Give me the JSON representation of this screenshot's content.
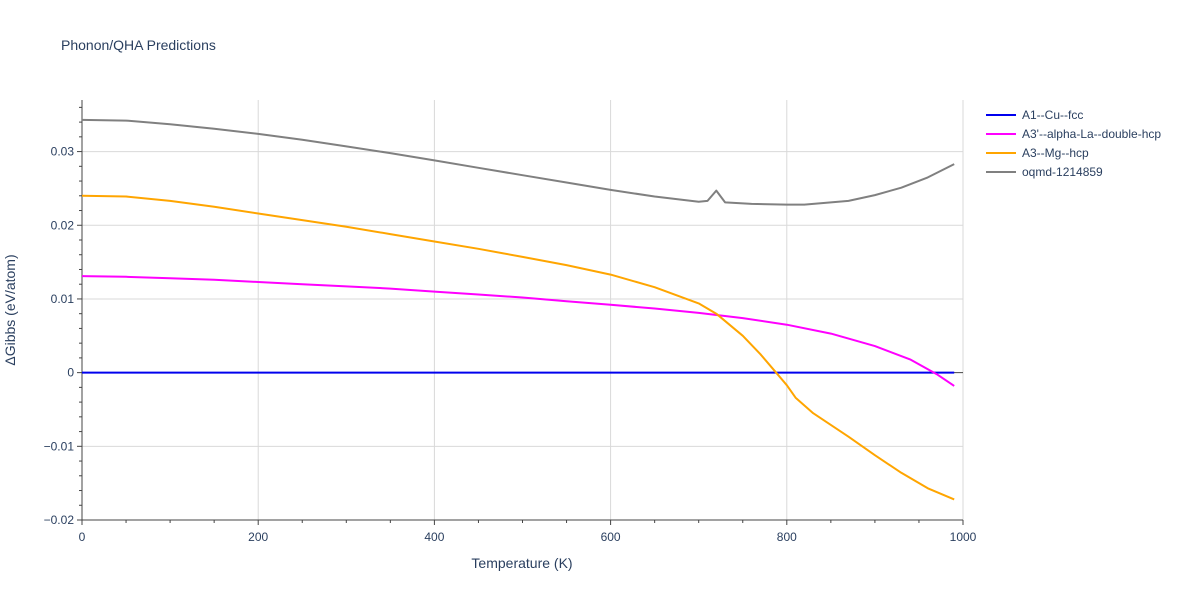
{
  "chart_data": {
    "type": "line",
    "title": "Phonon/QHA Predictions",
    "xlabel": "Temperature (K)",
    "ylabel": "ΔGibbs (eV/atom)",
    "xlim": [
      0,
      1000
    ],
    "ylim": [
      -0.02,
      0.037
    ],
    "xticks": [
      0,
      200,
      400,
      600,
      800,
      1000
    ],
    "xtick_labels": [
      "0",
      "200",
      "400",
      "600",
      "800",
      "1000"
    ],
    "yticks": [
      -0.02,
      -0.01,
      0,
      0.01,
      0.02,
      0.03
    ],
    "ytick_labels": [
      "−0.02",
      "−0.01",
      "0",
      "0.01",
      "0.02",
      "0.03"
    ],
    "grid": true,
    "legend_position": "right",
    "series": [
      {
        "name": "A1--Cu--fcc",
        "color": "#0000ee",
        "x": [
          0,
          990
        ],
        "y": [
          0,
          0
        ]
      },
      {
        "name": "A3'--alpha-La--double-hcp",
        "color": "#ff00ff",
        "x": [
          0,
          50,
          100,
          150,
          200,
          250,
          300,
          350,
          400,
          450,
          500,
          550,
          600,
          650,
          700,
          750,
          800,
          850,
          900,
          940,
          970,
          990
        ],
        "y": [
          0.0131,
          0.013,
          0.0128,
          0.0126,
          0.0123,
          0.012,
          0.0117,
          0.0114,
          0.011,
          0.0106,
          0.0102,
          0.0097,
          0.0092,
          0.0087,
          0.0081,
          0.0074,
          0.0065,
          0.0053,
          0.0036,
          0.0018,
          -0.0002,
          -0.0018
        ]
      },
      {
        "name": "A3--Mg--hcp",
        "color": "#ffa500",
        "x": [
          0,
          50,
          100,
          150,
          200,
          250,
          300,
          350,
          400,
          450,
          500,
          550,
          600,
          650,
          700,
          720,
          750,
          770,
          790,
          800,
          810,
          830,
          870,
          900,
          930,
          960,
          990
        ],
        "y": [
          0.024,
          0.0239,
          0.0233,
          0.0225,
          0.0216,
          0.0207,
          0.0198,
          0.0188,
          0.0178,
          0.0168,
          0.0157,
          0.0146,
          0.0133,
          0.0116,
          0.0094,
          0.008,
          0.005,
          0.0025,
          -0.0003,
          -0.0017,
          -0.0034,
          -0.0055,
          -0.0087,
          -0.0112,
          -0.0136,
          -0.0157,
          -0.0172
        ]
      },
      {
        "name": "oqmd-1214859",
        "color": "#808080",
        "x": [
          0,
          50,
          100,
          150,
          200,
          250,
          300,
          350,
          400,
          450,
          500,
          550,
          600,
          650,
          700,
          710,
          720,
          730,
          760,
          800,
          820,
          850,
          870,
          900,
          930,
          960,
          990
        ],
        "y": [
          0.0343,
          0.0342,
          0.0337,
          0.0331,
          0.0324,
          0.0316,
          0.0307,
          0.0298,
          0.0288,
          0.0278,
          0.0268,
          0.0258,
          0.0248,
          0.0239,
          0.0232,
          0.0233,
          0.0247,
          0.0231,
          0.0229,
          0.0228,
          0.0228,
          0.0231,
          0.0233,
          0.0241,
          0.0251,
          0.0265,
          0.0283
        ]
      }
    ]
  }
}
